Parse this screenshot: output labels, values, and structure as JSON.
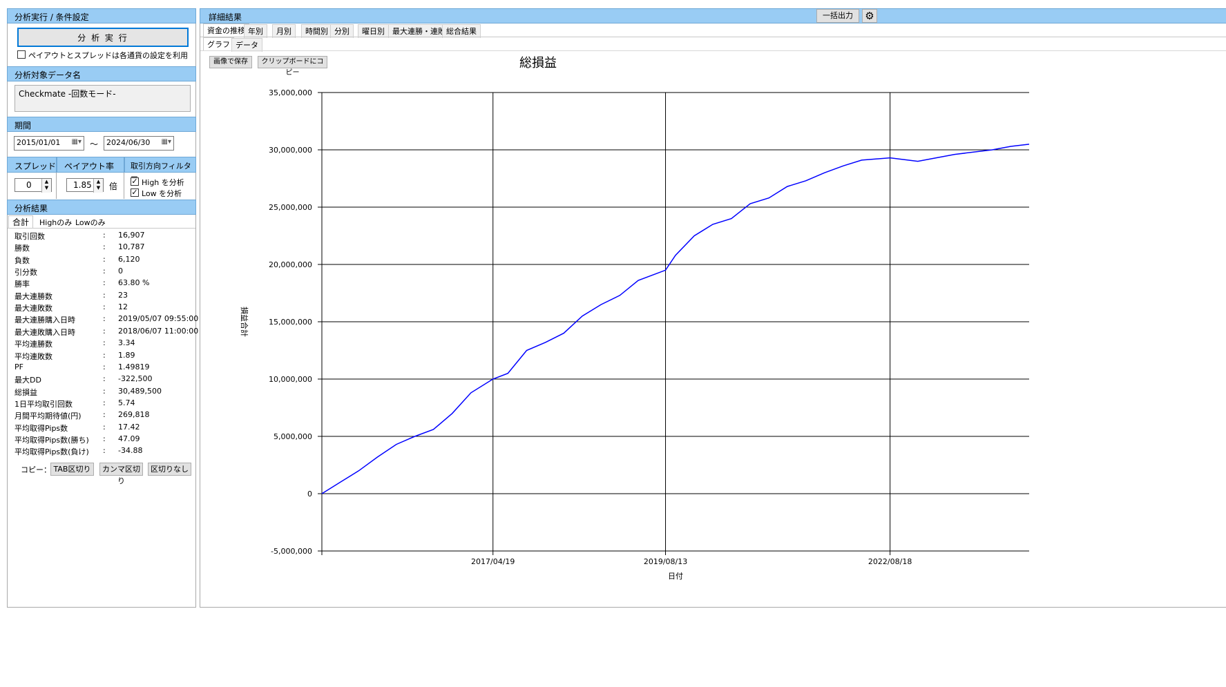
{
  "left": {
    "settings_header": "分析実行 / 条件設定",
    "run_button": "分 析 実 行",
    "use_currency_settings": {
      "checked": false,
      "label": "ペイアウトとスプレッドは各通貨の設定を利用"
    },
    "target_header": "分析対象データ名",
    "target_name": "Checkmate -回数モード-",
    "period_header": "期間",
    "date_from": "2015/01/01",
    "tilde": "～",
    "date_to": "2024/06/30",
    "spread_header": "スプレッド",
    "spread_value": "0",
    "payout_header": "ペイアウト率",
    "payout_value": "1.85",
    "payout_unit": "倍",
    "filter_header": "取引方向フィルター",
    "filter_high": {
      "checked": true,
      "label": "High を分析"
    },
    "filter_low": {
      "checked": true,
      "label": "Low を分析"
    },
    "results_header": "分析結果",
    "result_tabs": [
      "合計",
      "Highのみ",
      "Lowのみ"
    ],
    "stats": [
      {
        "label": "取引回数",
        "value": "16,907"
      },
      {
        "label": "勝数",
        "value": "10,787"
      },
      {
        "label": "負数",
        "value": "6,120"
      },
      {
        "label": "引分数",
        "value": "0"
      },
      {
        "label": "勝率",
        "value": "63.80 %"
      },
      {
        "label": "最大連勝数",
        "value": "23"
      },
      {
        "label": "最大連敗数",
        "value": "12"
      },
      {
        "label": "最大連勝購入日時",
        "value": "2019/05/07 09:55:00"
      },
      {
        "label": "最大連敗購入日時",
        "value": "2018/06/07 11:00:00"
      },
      {
        "label": "平均連勝数",
        "value": "3.34"
      },
      {
        "label": "平均連敗数",
        "value": "1.89"
      },
      {
        "label": "PF",
        "value": "1.49819"
      },
      {
        "label": "最大DD",
        "value": "-322,500"
      },
      {
        "label": "総損益",
        "value": "30,489,500"
      },
      {
        "label": "1日平均取引回数",
        "value": "5.74"
      },
      {
        "label": "月間平均期待値(円)",
        "value": "269,818"
      },
      {
        "label": "平均取得Pips数",
        "value": "17.42"
      },
      {
        "label": "平均取得Pips数(勝ち)",
        "value": "47.09"
      },
      {
        "label": "平均取得Pips数(負け)",
        "value": "-34.88"
      }
    ],
    "stat_colon": ":",
    "copy_label": "コピー：",
    "copy_tab": "TAB区切り",
    "copy_comma": "カンマ区切り",
    "copy_none": "区切りなし"
  },
  "right": {
    "header": "詳細結果",
    "export_button": "一括出力",
    "settings_icon": "gear-icon",
    "main_tabs": [
      "資金の推移",
      "年別",
      "月別",
      "時間別",
      "分別",
      "曜日別",
      "最大連勝・連敗",
      "総合結果"
    ],
    "sub_tabs": [
      "グラフ",
      "データ"
    ],
    "save_image": "画像で保存",
    "copy_clipboard": "クリップボードにコピー"
  },
  "chart_data": {
    "type": "line",
    "title": "総損益",
    "xlabel": "日付",
    "ylabel": "損益合計",
    "ylim": [
      -5000000,
      35000000
    ],
    "yticks": [
      -5000000,
      0,
      5000000,
      10000000,
      15000000,
      20000000,
      25000000,
      30000000,
      35000000
    ],
    "ytick_labels": [
      "-5,000,000",
      "0",
      "5,000,000",
      "10,000,000",
      "15,000,000",
      "20,000,000",
      "25,000,000",
      "30,000,000",
      "35,000,000"
    ],
    "xlim": [
      "2015/01/01",
      "2024/06/30"
    ],
    "xticks": [
      "2017/04/19",
      "2019/08/13",
      "2022/08/18"
    ],
    "grid": true,
    "line_color": "#0000ff",
    "series": [
      {
        "x": [
          "2015/01/01",
          "2015/04/01",
          "2015/07/01",
          "2015/10/01",
          "2016/01/01",
          "2016/04/01",
          "2016/07/01",
          "2016/10/01",
          "2017/01/01",
          "2017/04/19",
          "2017/07/01",
          "2017/10/01",
          "2018/01/01",
          "2018/04/01",
          "2018/07/01",
          "2018/10/01",
          "2019/01/01",
          "2019/04/01",
          "2019/08/13",
          "2019/10/01",
          "2020/01/01",
          "2020/04/01",
          "2020/07/01",
          "2020/10/01",
          "2021/01/01",
          "2021/04/01",
          "2021/07/01",
          "2021/10/01",
          "2022/01/01",
          "2022/04/01",
          "2022/08/18",
          "2022/10/01",
          "2023/01/01",
          "2023/04/01",
          "2023/07/01",
          "2023/10/01",
          "2024/01/01",
          "2024/04/01",
          "2024/06/30"
        ],
        "values": [
          0,
          1000000,
          2000000,
          3200000,
          4300000,
          5000000,
          5600000,
          7000000,
          8800000,
          10000000,
          10500000,
          12500000,
          13200000,
          14000000,
          15500000,
          16500000,
          17300000,
          18600000,
          19500000,
          20800000,
          22500000,
          23500000,
          24000000,
          25300000,
          25800000,
          26800000,
          27300000,
          28000000,
          28600000,
          29100000,
          29300000,
          29200000,
          29000000,
          29300000,
          29600000,
          29800000,
          30000000,
          30300000,
          30489500
        ]
      }
    ]
  }
}
